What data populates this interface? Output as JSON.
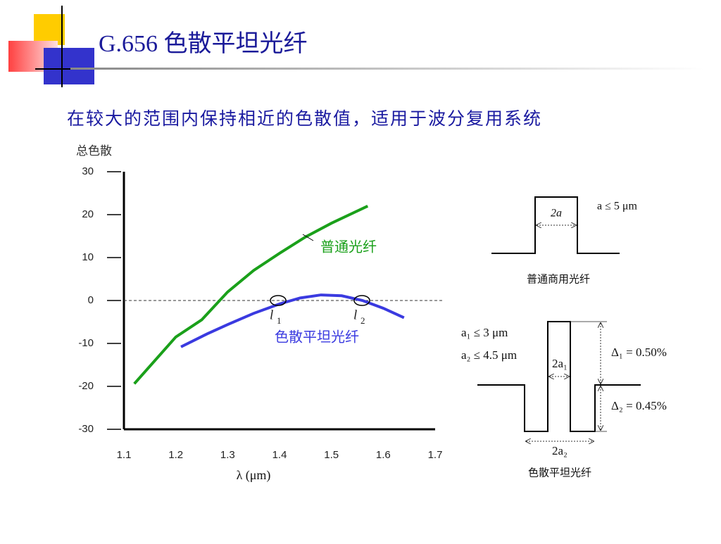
{
  "slide": {
    "title": "G.656 色散平坦光纤",
    "subtitle": "在较大的范围内保持相近的色散值，适用于波分复用系统",
    "diagram_1": {
      "width_label": "2a",
      "condition": "a ≤ 5 μm",
      "caption": "普通商用光纤"
    },
    "diagram_2": {
      "condition_1": "a₁ ≤ 3 μm",
      "condition_2": "a₂ ≤ 4.5 μm",
      "inner_width_label": "2a₁",
      "outer_width_label": "2a₂",
      "delta_1": "Δ₁ = 0.50%",
      "delta_2": "Δ₂ = 0.45%",
      "caption": "色散平坦光纤"
    }
  },
  "chart_data": {
    "type": "line",
    "y_label": "总色散",
    "x_label": "λ  (μm)",
    "xlim": [
      1.1,
      1.7
    ],
    "xticks": [
      1.1,
      1.2,
      1.3,
      1.4,
      1.5,
      1.6,
      1.7
    ],
    "ylim": [
      -30,
      30
    ],
    "yticks": [
      30,
      20,
      10,
      0,
      -10,
      -20,
      -30
    ],
    "reference_line": 0,
    "series": [
      {
        "name": "普通光纤",
        "color": "#1aa01a",
        "x": [
          1.12,
          1.2,
          1.25,
          1.3,
          1.35,
          1.4,
          1.45,
          1.5,
          1.57
        ],
        "values": [
          -19.4,
          -8.5,
          -4.5,
          2,
          7,
          11,
          14.8,
          18,
          22
        ]
      },
      {
        "name": "色散平坦光纤",
        "color": "#3a3ae0",
        "x": [
          1.21,
          1.26,
          1.3,
          1.35,
          1.4,
          1.44,
          1.48,
          1.52,
          1.56,
          1.6,
          1.64
        ],
        "values": [
          -10.8,
          -7.8,
          -5.6,
          -3,
          -0.8,
          0.6,
          1.3,
          1.1,
          0,
          -1.8,
          -4
        ]
      }
    ],
    "annotations": [
      {
        "text": "l",
        "sub": "1"
      },
      {
        "text": "l",
        "sub": "2"
      }
    ]
  }
}
